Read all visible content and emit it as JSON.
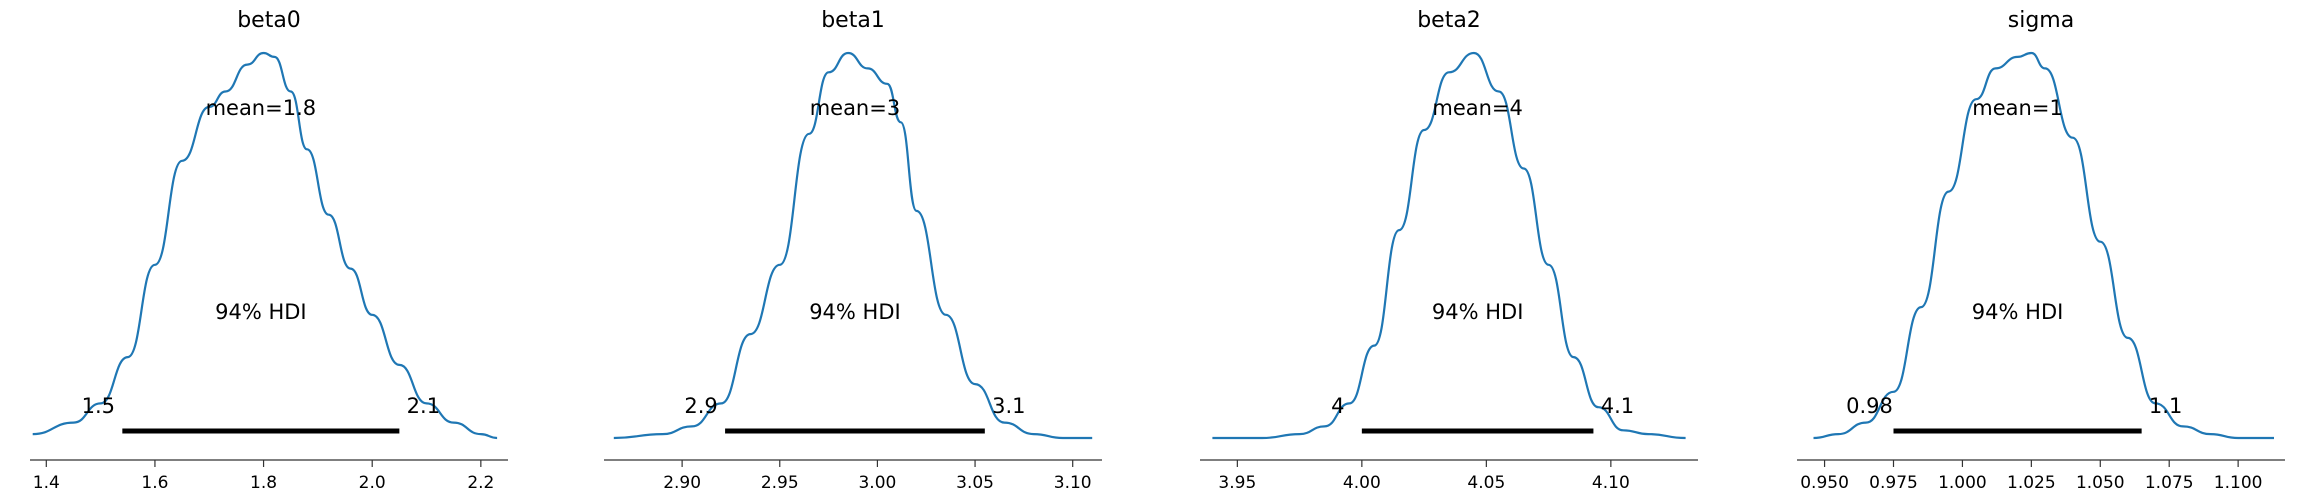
{
  "chart_data": [
    {
      "type": "area",
      "title": "beta0",
      "xlim": [
        1.37,
        2.25
      ],
      "xticks": [
        1.4,
        1.6,
        1.8,
        2.0,
        2.2
      ],
      "xtick_labels": [
        "1.4",
        "1.6",
        "1.8",
        "2.0",
        "2.2"
      ],
      "mean_label": "mean=1.8",
      "hdi_label": "94% HDI",
      "hdi": [
        1.54,
        2.05
      ],
      "hdi_low_label": "1.5",
      "hdi_high_label": "2.1",
      "density": {
        "x": [
          1.375,
          1.45,
          1.5,
          1.55,
          1.6,
          1.65,
          1.7,
          1.73,
          1.77,
          1.8,
          1.82,
          1.85,
          1.88,
          1.92,
          1.96,
          2.0,
          2.05,
          2.1,
          2.15,
          2.2,
          2.23
        ],
        "y": [
          0.01,
          0.04,
          0.09,
          0.21,
          0.45,
          0.72,
          0.86,
          0.9,
          0.97,
          1.0,
          0.99,
          0.9,
          0.75,
          0.58,
          0.44,
          0.32,
          0.19,
          0.09,
          0.04,
          0.01,
          0.0
        ]
      },
      "color": "#1f77b4"
    },
    {
      "type": "area",
      "title": "beta1",
      "xlim": [
        2.86,
        3.115
      ],
      "xticks": [
        2.9,
        2.95,
        3.0,
        3.05,
        3.1
      ],
      "xtick_labels": [
        "2.90",
        "2.95",
        "3.00",
        "3.05",
        "3.10"
      ],
      "mean_label": "mean=3",
      "hdi_label": "94% HDI",
      "hdi": [
        2.922,
        3.055
      ],
      "hdi_low_label": "2.9",
      "hdi_high_label": "3.1",
      "density": {
        "x": [
          2.865,
          2.89,
          2.905,
          2.92,
          2.935,
          2.95,
          2.965,
          2.975,
          2.985,
          2.995,
          3.005,
          3.012,
          3.02,
          3.035,
          3.05,
          3.065,
          3.08,
          3.095,
          3.11
        ],
        "y": [
          0.0,
          0.01,
          0.03,
          0.09,
          0.27,
          0.45,
          0.79,
          0.95,
          1.0,
          0.96,
          0.92,
          0.82,
          0.59,
          0.32,
          0.14,
          0.04,
          0.01,
          0.0,
          0.0
        ]
      },
      "color": "#1f77b4"
    },
    {
      "type": "area",
      "title": "beta2",
      "xlim": [
        3.935,
        4.135
      ],
      "xticks": [
        3.95,
        4.0,
        4.05,
        4.1
      ],
      "xtick_labels": [
        "3.95",
        "4.00",
        "4.05",
        "4.10"
      ],
      "mean_label": "mean=4",
      "hdi_label": "94% HDI",
      "hdi": [
        4.0,
        4.093
      ],
      "hdi_low_label": "4",
      "hdi_high_label": "4.1",
      "density": {
        "x": [
          3.94,
          3.96,
          3.975,
          3.985,
          3.995,
          4.005,
          4.015,
          4.025,
          4.035,
          4.045,
          4.055,
          4.065,
          4.075,
          4.085,
          4.095,
          4.105,
          4.115,
          4.13
        ],
        "y": [
          0.0,
          0.0,
          0.01,
          0.03,
          0.09,
          0.24,
          0.54,
          0.8,
          0.95,
          1.0,
          0.9,
          0.7,
          0.45,
          0.21,
          0.08,
          0.02,
          0.01,
          0.0
        ]
      },
      "color": "#1f77b4"
    },
    {
      "type": "area",
      "title": "sigma",
      "xlim": [
        0.94,
        1.117
      ],
      "xticks": [
        0.95,
        0.975,
        1.0,
        1.025,
        1.05,
        1.075,
        1.1
      ],
      "xtick_labels": [
        "0.950",
        "0.975",
        "1.000",
        "1.025",
        "1.050",
        "1.075",
        "1.100"
      ],
      "mean_label": "mean=1",
      "hdi_label": "94% HDI",
      "hdi": [
        0.975,
        1.065
      ],
      "hdi_low_label": "0.98",
      "hdi_high_label": "1.1",
      "density": {
        "x": [
          0.946,
          0.955,
          0.965,
          0.975,
          0.985,
          0.995,
          1.005,
          1.012,
          1.02,
          1.025,
          1.03,
          1.04,
          1.05,
          1.06,
          1.07,
          1.08,
          1.09,
          1.1,
          1.113
        ],
        "y": [
          0.0,
          0.01,
          0.04,
          0.12,
          0.34,
          0.64,
          0.88,
          0.96,
          0.99,
          1.0,
          0.96,
          0.78,
          0.51,
          0.26,
          0.09,
          0.03,
          0.01,
          0.0,
          0.0
        ]
      },
      "color": "#1f77b4"
    }
  ]
}
